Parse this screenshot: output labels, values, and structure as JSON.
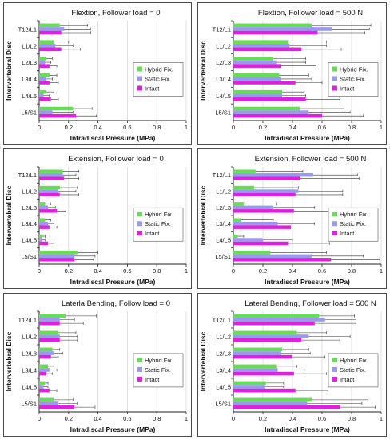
{
  "colors": {
    "hybrid": "#66dd55",
    "static": "#9999ee",
    "intact": "#dd22dd",
    "error": "#333333",
    "grid": "#d8d8d8",
    "axis": "#222222"
  },
  "chart_data": [
    {
      "type": "bar",
      "orientation": "horizontal",
      "title": "Flextion, Follower load = 0",
      "xlabel": "Intradiscal Pressure (MPa)",
      "ylabel": "Intervertebral Disc",
      "xlim": [
        0,
        1
      ],
      "xticks": [
        "0",
        "0.2",
        "0.4",
        "0.6",
        "0.8",
        "1"
      ],
      "categories": [
        "T12/L1",
        "L1/L2",
        "L2/L3",
        "L3/L4",
        "L4/L5",
        "L5/S1"
      ],
      "series": [
        {
          "name": "Hybrid Fix.",
          "values": [
            0.14,
            0.1,
            0.05,
            0.07,
            0.05,
            0.23
          ],
          "errors": [
            0.19,
            0.1,
            0.04,
            0.05,
            0.05,
            0.13
          ]
        },
        {
          "name": "Static Fix.",
          "values": [
            0.17,
            0.11,
            0.04,
            0.05,
            0.03,
            0.09
          ],
          "errors": [
            0.18,
            0.12,
            0.04,
            0.04,
            0.04,
            0.14
          ]
        },
        {
          "name": "Intact",
          "values": [
            0.15,
            0.15,
            0.07,
            0.07,
            0.08,
            0.25
          ],
          "errors": [
            0.2,
            0.13,
            0.05,
            0.06,
            0.05,
            0.14
          ]
        }
      ],
      "legend": {
        "position": "right",
        "entries": [
          "Hybrid Fix.",
          "Static Fix.",
          "Intact"
        ]
      }
    },
    {
      "type": "bar",
      "orientation": "horizontal",
      "title": "Flextion, Follower load = 500 N",
      "xlabel": "Intradiscal Pressure (MPa)",
      "ylabel": "Intervertebral Disc",
      "xlim": [
        0,
        1
      ],
      "xticks": [
        "0",
        "0.2",
        "0.4",
        "0.6",
        "0.8",
        "1"
      ],
      "categories": [
        "T12/L1",
        "L1/L2",
        "L2/L3",
        "L3/L4",
        "L4/L5",
        "L5/S1"
      ],
      "series": [
        {
          "name": "Hybrid Fix.",
          "values": [
            0.53,
            0.37,
            0.27,
            0.31,
            0.33,
            0.45
          ],
          "errors": [
            0.4,
            0.26,
            0.22,
            0.2,
            0.15,
            0.3
          ]
        },
        {
          "name": "Static Fix.",
          "values": [
            0.67,
            0.38,
            0.29,
            0.32,
            0.33,
            0.51
          ],
          "errors": [
            0.25,
            0.25,
            0.2,
            0.21,
            0.16,
            0.28
          ]
        },
        {
          "name": "Intact",
          "values": [
            0.57,
            0.46,
            0.32,
            0.42,
            0.49,
            0.6
          ],
          "errors": [
            0.32,
            0.27,
            0.24,
            0.18,
            0.23,
            0.28
          ]
        }
      ],
      "legend": {
        "position": "right",
        "entries": [
          "Hybrid Fix.",
          "Static Fix.",
          "Intact"
        ]
      }
    },
    {
      "type": "bar",
      "orientation": "horizontal",
      "title": "Extension, Follower load = 0",
      "xlabel": "Intradiscal Pressure (MPa)",
      "ylabel": "Intervertebral Disc",
      "xlim": [
        0,
        1
      ],
      "xticks": [
        "0",
        "0.2",
        "0.4",
        "0.6",
        "0.8",
        "1"
      ],
      "categories": [
        "T12/L1",
        "L1/L2",
        "L2/L3",
        "L3/L4",
        "L4/L5",
        "L5/S1"
      ],
      "series": [
        {
          "name": "Hybrid Fix.",
          "values": [
            0.16,
            0.14,
            0.04,
            0.04,
            0.02,
            0.26
          ],
          "errors": [
            0.11,
            0.12,
            0.04,
            0.04,
            0.02,
            0.14
          ]
        },
        {
          "name": "Static Fix.",
          "values": [
            0.16,
            0.13,
            0.06,
            0.06,
            0.02,
            0.24
          ],
          "errors": [
            0.09,
            0.12,
            0.05,
            0.04,
            0.02,
            0.14
          ]
        },
        {
          "name": "Intact",
          "values": [
            0.17,
            0.14,
            0.12,
            0.07,
            0.06,
            0.24
          ],
          "errors": [
            0.1,
            0.13,
            0.06,
            0.05,
            0.04,
            0.13
          ]
        }
      ],
      "legend": {
        "position": "right",
        "entries": [
          "Hybrid Fix.",
          "Static Fix.",
          "Intact"
        ]
      }
    },
    {
      "type": "bar",
      "orientation": "horizontal",
      "title": "Extension, Follower load = 500 N",
      "xlabel": "Intradiscal Pressure (MPa)",
      "ylabel": "Intervertebral Disc",
      "xlim": [
        0,
        1
      ],
      "xticks": [
        "0",
        "0.2",
        "0.4",
        "0.6",
        "0.8",
        "1"
      ],
      "categories": [
        "T12/L1",
        "L1/L2",
        "L2/L3",
        "L3/L4",
        "L4/L5",
        "L5/S1"
      ],
      "series": [
        {
          "name": "Hybrid Fix.",
          "values": [
            0.15,
            0.14,
            0.07,
            0.05,
            0.03,
            0.25
          ],
          "errors": [
            0.32,
            0.3,
            0.22,
            0.22,
            0.04,
            0.38
          ]
        },
        {
          "name": "Static Fix.",
          "values": [
            0.54,
            0.44,
            0.27,
            0.3,
            0.2,
            0.53
          ],
          "errors": [
            0.3,
            0.3,
            0.28,
            0.25,
            0.2,
            0.35
          ]
        },
        {
          "name": "Intact",
          "values": [
            0.45,
            0.42,
            0.41,
            0.39,
            0.37,
            0.66
          ],
          "errors": [
            0.4,
            0.32,
            0.3,
            0.32,
            0.28,
            0.33
          ]
        }
      ],
      "legend": {
        "position": "right",
        "entries": [
          "Hybrid Fix.",
          "Static Fix.",
          "Intact"
        ]
      }
    },
    {
      "type": "bar",
      "orientation": "horizontal",
      "title": "Laterla Bending, Follow load = 0",
      "xlabel": "Intradiscal Pressure (MPa)",
      "ylabel": "Intervertebral Disc",
      "xlim": [
        0,
        1
      ],
      "xticks": [
        "0",
        "0.2",
        "0.4",
        "0.6",
        "0.8",
        "1"
      ],
      "categories": [
        "T12/L1",
        "L1/L2",
        "L2/L3",
        "L3/L4",
        "L4/L5",
        "L5/S1"
      ],
      "series": [
        {
          "name": "Hybrid Fix.",
          "values": [
            0.18,
            0.13,
            0.09,
            0.06,
            0.04,
            0.1
          ],
          "errors": [
            0.21,
            0.12,
            0.05,
            0.04,
            0.02,
            0.13
          ]
        },
        {
          "name": "Static Fix.",
          "values": [
            0.14,
            0.14,
            0.1,
            0.07,
            0.03,
            0.13
          ],
          "errors": [
            0.1,
            0.12,
            0.06,
            0.05,
            0.03,
            0.13
          ]
        },
        {
          "name": "Intact",
          "values": [
            0.14,
            0.14,
            0.08,
            0.05,
            0.07,
            0.24
          ],
          "errors": [
            0.16,
            0.12,
            0.05,
            0.04,
            0.05,
            0.14
          ]
        }
      ],
      "legend": {
        "position": "right",
        "entries": [
          "Hybrid Fix.",
          "Static Fix.",
          "Intact"
        ]
      }
    },
    {
      "type": "bar",
      "orientation": "horizontal",
      "title": "Lateral Bending, Follower load = 500 N",
      "xlabel": "Intradiscal Pressure (MPa)",
      "ylabel": "Intervertebral Disc",
      "xlim": [
        0,
        1
      ],
      "xticks": [
        "0",
        "0.2",
        "0.4",
        "0.6",
        "0.8",
        "1"
      ],
      "categories": [
        "T12/L1",
        "L1/L2",
        "L2/L3",
        "L3/L4",
        "L4/L5",
        "L5/S1"
      ],
      "series": [
        {
          "name": "Hybrid Fix.",
          "values": [
            0.58,
            0.43,
            0.33,
            0.29,
            0.22,
            0.53
          ],
          "errors": [
            0.24,
            0.2,
            0.18,
            0.14,
            0.12,
            0.38
          ]
        },
        {
          "name": "Static Fix.",
          "values": [
            0.62,
            0.51,
            0.32,
            0.3,
            0.21,
            0.5
          ],
          "errors": [
            0.21,
            0.28,
            0.2,
            0.18,
            0.13,
            0.37
          ]
        },
        {
          "name": "Intact",
          "values": [
            0.55,
            0.46,
            0.4,
            0.41,
            0.42,
            0.72
          ],
          "errors": [
            0.28,
            0.26,
            0.22,
            0.22,
            0.22,
            0.24
          ]
        }
      ],
      "legend": {
        "position": "right",
        "entries": [
          "Hybrid Fix.",
          "Static Fix.",
          "Intact"
        ]
      }
    }
  ]
}
